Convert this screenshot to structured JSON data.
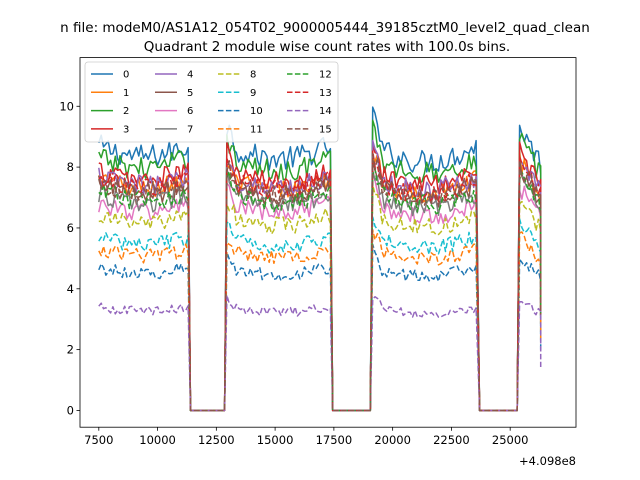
{
  "figure": {
    "suptitle": "n file: modeM0/AS1A12_054T02_9000005444_39185cztM0_level2_quad_clean",
    "title": "Quadrant 2 module wise count rates with 100.0s bins.",
    "offset_label": "+4.098e8"
  },
  "chart_data": {
    "type": "line",
    "title": "Quadrant 2 module wise count rates with 100.0s bins.",
    "xlabel": "",
    "ylabel": "",
    "x_offset": 409800000,
    "xlim": [
      6700,
      27800
    ],
    "ylim": [
      -0.55,
      11.6
    ],
    "x_ticks": [
      7500,
      10000,
      12500,
      15000,
      17500,
      20000,
      22500,
      25000
    ],
    "x_tick_labels": [
      "7500",
      "10000",
      "12500",
      "15000",
      "17500",
      "20000",
      "22500",
      "25000"
    ],
    "y_ticks": [
      0,
      2,
      4,
      6,
      8,
      10
    ],
    "y_tick_labels": [
      "0",
      "2",
      "4",
      "6",
      "8",
      "10"
    ],
    "grid": false,
    "legend_position": "top-left",
    "legend_columns": 4,
    "segments": [
      [
        7500,
        11300
      ],
      [
        12950,
        17350
      ],
      [
        19150,
        23600
      ],
      [
        25400,
        26300
      ]
    ],
    "gaps": [
      [
        11300,
        12950
      ],
      [
        17350,
        19150
      ],
      [
        23600,
        25400
      ]
    ],
    "series": [
      {
        "name": "0",
        "color": "#1f77b4",
        "dash": "solid",
        "level": 8.7
      },
      {
        "name": "1",
        "color": "#ff7f0e",
        "dash": "solid",
        "level": 7.6
      },
      {
        "name": "2",
        "color": "#2ca02c",
        "dash": "solid",
        "level": 8.3
      },
      {
        "name": "3",
        "color": "#d62728",
        "dash": "solid",
        "level": 7.9
      },
      {
        "name": "4",
        "color": "#9467bd",
        "dash": "solid",
        "level": 7.7
      },
      {
        "name": "5",
        "color": "#8c564b",
        "dash": "solid",
        "level": 7.4
      },
      {
        "name": "6",
        "color": "#e377c2",
        "dash": "solid",
        "level": 6.8
      },
      {
        "name": "7",
        "color": "#7f7f7f",
        "dash": "solid",
        "level": 7.1
      },
      {
        "name": "8",
        "color": "#bcbd22",
        "dash": "dashed",
        "level": 6.4
      },
      {
        "name": "9",
        "color": "#17becf",
        "dash": "dashed",
        "level": 5.7
      },
      {
        "name": "10",
        "color": "#1f77b4",
        "dash": "dashed",
        "level": 4.7
      },
      {
        "name": "11",
        "color": "#ff7f0e",
        "dash": "dashed",
        "level": 5.3
      },
      {
        "name": "12",
        "color": "#2ca02c",
        "dash": "dashed",
        "level": 7.2
      },
      {
        "name": "13",
        "color": "#d62728",
        "dash": "dashed",
        "level": 7.6
      },
      {
        "name": "14",
        "color": "#9467bd",
        "dash": "dashed",
        "level": 3.4
      },
      {
        "name": "15",
        "color": "#8c564b",
        "dash": "dashed",
        "level": 7.5
      }
    ]
  }
}
